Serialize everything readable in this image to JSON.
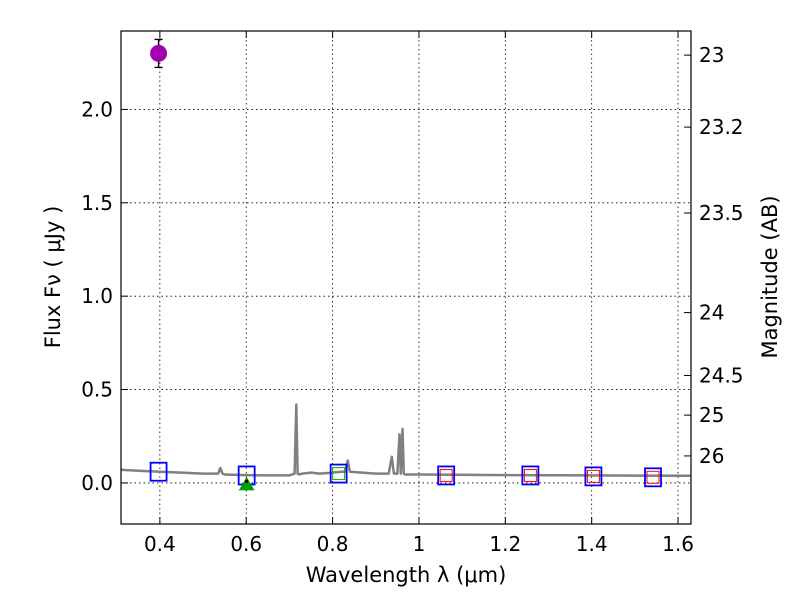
{
  "chart_data": {
    "type": "scatter",
    "xlabel": "Wavelength  λ (μm)",
    "ylabel": "Flux  Fν  ( μJy )",
    "y2label": "Magnitude (AB)",
    "xlim": [
      0.31,
      1.63
    ],
    "ylim": [
      -0.22,
      2.42
    ],
    "grid": true,
    "x_ticks": [
      0.4,
      0.6,
      0.8,
      1.0,
      1.2,
      1.4,
      1.6
    ],
    "x_tick_labels": [
      "0.4",
      "0.6",
      "0.8",
      "1",
      "1.2",
      "1.4",
      "1.6"
    ],
    "y_ticks": [
      0.0,
      0.5,
      1.0,
      1.5,
      2.0
    ],
    "y_tick_labels": [
      "0.0",
      "0.5",
      "1.0",
      "1.5",
      "2.0"
    ],
    "mag_ticks": [
      23,
      23.2,
      23.5,
      24,
      24.5,
      25,
      26
    ],
    "mag_tick_labels": [
      "23",
      "23.2",
      "23.5",
      "24",
      "24.5",
      "25",
      "26"
    ],
    "colors": {
      "template": "#808080",
      "observed": "#a000b0",
      "model": "#0000ff",
      "detection": "#ff0000",
      "near_detection": "#00b000",
      "upper_limit": "#00a000"
    },
    "series": [
      {
        "kind": "line",
        "color_key": "template",
        "x": [
          0.31,
          0.35,
          0.4,
          0.45,
          0.5,
          0.535,
          0.54,
          0.545,
          0.55,
          0.6,
          0.65,
          0.7,
          0.712,
          0.716,
          0.719,
          0.722,
          0.73,
          0.75,
          0.77,
          0.8,
          0.82,
          0.83,
          0.835,
          0.84,
          0.9,
          0.93,
          0.937,
          0.942,
          0.95,
          0.955,
          0.958,
          0.962,
          0.965,
          0.968,
          0.97,
          1.0,
          1.2,
          1.4,
          1.63
        ],
        "y": [
          0.07,
          0.065,
          0.06,
          0.055,
          0.05,
          0.05,
          0.08,
          0.05,
          0.045,
          0.042,
          0.04,
          0.04,
          0.05,
          0.42,
          0.05,
          0.045,
          0.05,
          0.055,
          0.05,
          0.055,
          0.06,
          0.06,
          0.12,
          0.06,
          0.05,
          0.05,
          0.14,
          0.05,
          0.05,
          0.26,
          0.05,
          0.29,
          0.05,
          0.045,
          0.045,
          0.045,
          0.042,
          0.04,
          0.038
        ]
      },
      {
        "kind": "errorbar",
        "color_key": "observed",
        "x": [
          0.397
        ],
        "y": [
          2.3
        ],
        "yerr": [
          0.075
        ]
      },
      {
        "kind": "square",
        "color_key": "model",
        "x": [
          0.397,
          0.601,
          0.814,
          1.063,
          1.258,
          1.404,
          1.542
        ],
        "y": [
          0.06,
          0.04,
          0.05,
          0.04,
          0.04,
          0.035,
          0.03
        ]
      },
      {
        "kind": "small_square",
        "color_key": "detection",
        "x": [
          1.063,
          1.258,
          1.404,
          1.542
        ],
        "y": [
          0.04,
          0.04,
          0.035,
          0.03
        ]
      },
      {
        "kind": "small_square",
        "color_key": "near_detection",
        "x": [
          0.814
        ],
        "y": [
          0.05
        ]
      },
      {
        "kind": "triangle",
        "color_key": "upper_limit",
        "x": [
          0.601
        ],
        "y": [
          -0.005
        ]
      }
    ]
  }
}
